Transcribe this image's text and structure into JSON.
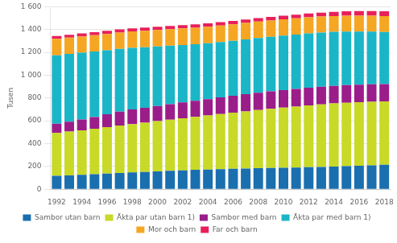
{
  "chart_data": {
    "type": "bar",
    "stacked": true,
    "ylabel": "Tusen",
    "categories": [
      "1992",
      null,
      "1994",
      null,
      "1996",
      null,
      "1998",
      null,
      "2000",
      null,
      "2002",
      null,
      "2004",
      null,
      "2006",
      null,
      "2008",
      null,
      "2010",
      null,
      "2012",
      null,
      "2014",
      null,
      "2016",
      null,
      "2018"
    ],
    "series": [
      {
        "name": "Sambor utan barn",
        "color": "#1a6faf",
        "values": [
          118,
          122,
          127,
          132,
          137,
          142,
          147,
          152,
          157,
          162,
          166,
          170,
          173,
          176,
          179,
          182,
          185,
          187,
          189,
          191,
          193,
          196,
          199,
          202,
          206,
          210,
          215
        ]
      },
      {
        "name": "Äkta par utan barn 1)",
        "color": "#c8d928",
        "values": [
          375,
          383,
          390,
          398,
          407,
          416,
          424,
          432,
          440,
          448,
          457,
          465,
          474,
          483,
          492,
          501,
          510,
          518,
          526,
          534,
          542,
          548,
          553,
          556,
          557,
          557,
          555
        ]
      },
      {
        "name": "Sambor med barn",
        "color": "#9b1d8a",
        "values": [
          82,
          88,
          95,
          103,
          113,
          122,
          128,
          130,
          133,
          136,
          138,
          140,
          143,
          146,
          148,
          150,
          152,
          153,
          154,
          154,
          155,
          155,
          155,
          155,
          154,
          153,
          152
        ]
      },
      {
        "name": "Äkta par med barn 1)",
        "color": "#1ab6c8",
        "values": [
          600,
          593,
          585,
          574,
          561,
          550,
          540,
          531,
          522,
          513,
          504,
          496,
          490,
          485,
          482,
          480,
          479,
          478,
          478,
          477,
          476,
          475,
          473,
          470,
          466,
          462,
          457
        ]
      },
      {
        "name": "Mor och barn",
        "color": "#f5a623",
        "values": [
          143,
          143,
          143,
          144,
          144,
          144,
          145,
          145,
          145,
          145,
          145,
          145,
          145,
          145,
          145,
          145,
          144,
          143,
          143,
          142,
          141,
          140,
          139,
          139,
          139,
          139,
          139
        ]
      },
      {
        "name": "Far och barn",
        "color": "#e8205a",
        "values": [
          25,
          25,
          26,
          26,
          27,
          27,
          27,
          28,
          28,
          28,
          29,
          29,
          29,
          30,
          30,
          31,
          31,
          32,
          32,
          33,
          34,
          35,
          37,
          38,
          40,
          41,
          43
        ]
      }
    ],
    "ylim": [
      0,
      1600
    ],
    "yticks": [
      0,
      200,
      400,
      600,
      800,
      {
        "value": 1000,
        "label": "1 000"
      },
      {
        "value": 1200,
        "label": "1 200"
      },
      {
        "value": 1400,
        "label": "1 400"
      },
      {
        "value": 1600,
        "label": "1 600"
      }
    ],
    "grid": true,
    "legend": "bottom"
  }
}
